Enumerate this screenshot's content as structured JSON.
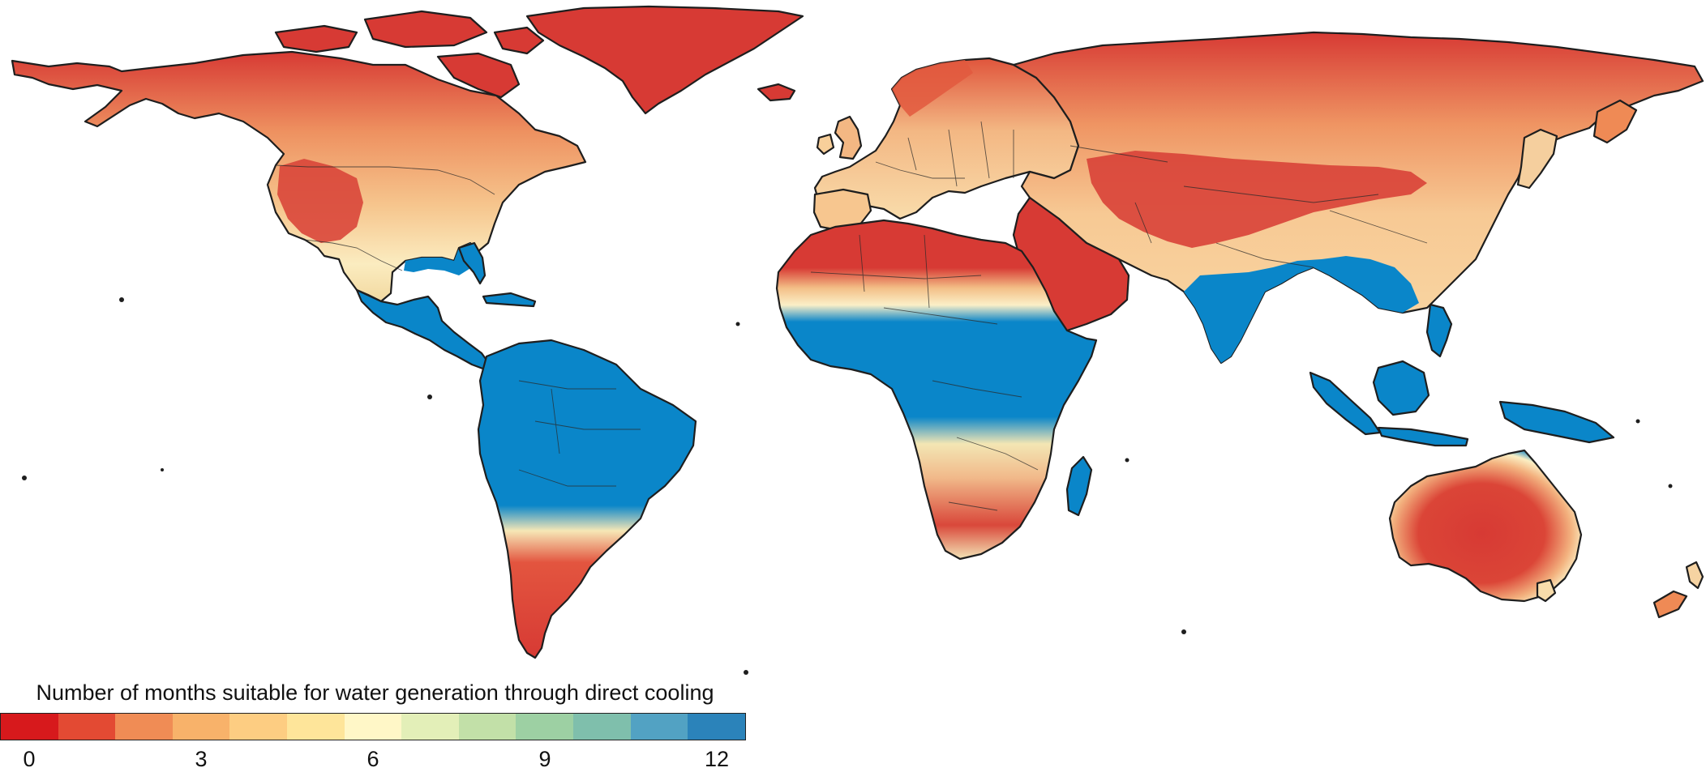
{
  "legend": {
    "title": "Number of months suitable for water generation through direct cooling",
    "bins": [
      "#d7191c",
      "#e34a33",
      "#f08c55",
      "#f8b26a",
      "#fdcd82",
      "#fee59a",
      "#fff7c7",
      "#e3efb8",
      "#c2e0a8",
      "#9dd0a3",
      "#7fbfac",
      "#52a2c3",
      "#2b83ba"
    ],
    "ticks": [
      {
        "label": "0",
        "value": 0
      },
      {
        "label": "3",
        "value": 3
      },
      {
        "label": "6",
        "value": 6
      },
      {
        "label": "9",
        "value": 9
      },
      {
        "label": "12",
        "value": 12
      }
    ],
    "range": [
      0,
      12
    ]
  },
  "palette": {
    "dry": "#d73a34",
    "warm": "#ef8a55",
    "mid": "#f7c98f",
    "pale": "#fbe9b8",
    "wet": "#0a86c9",
    "coast": "#1e1e1e"
  }
}
